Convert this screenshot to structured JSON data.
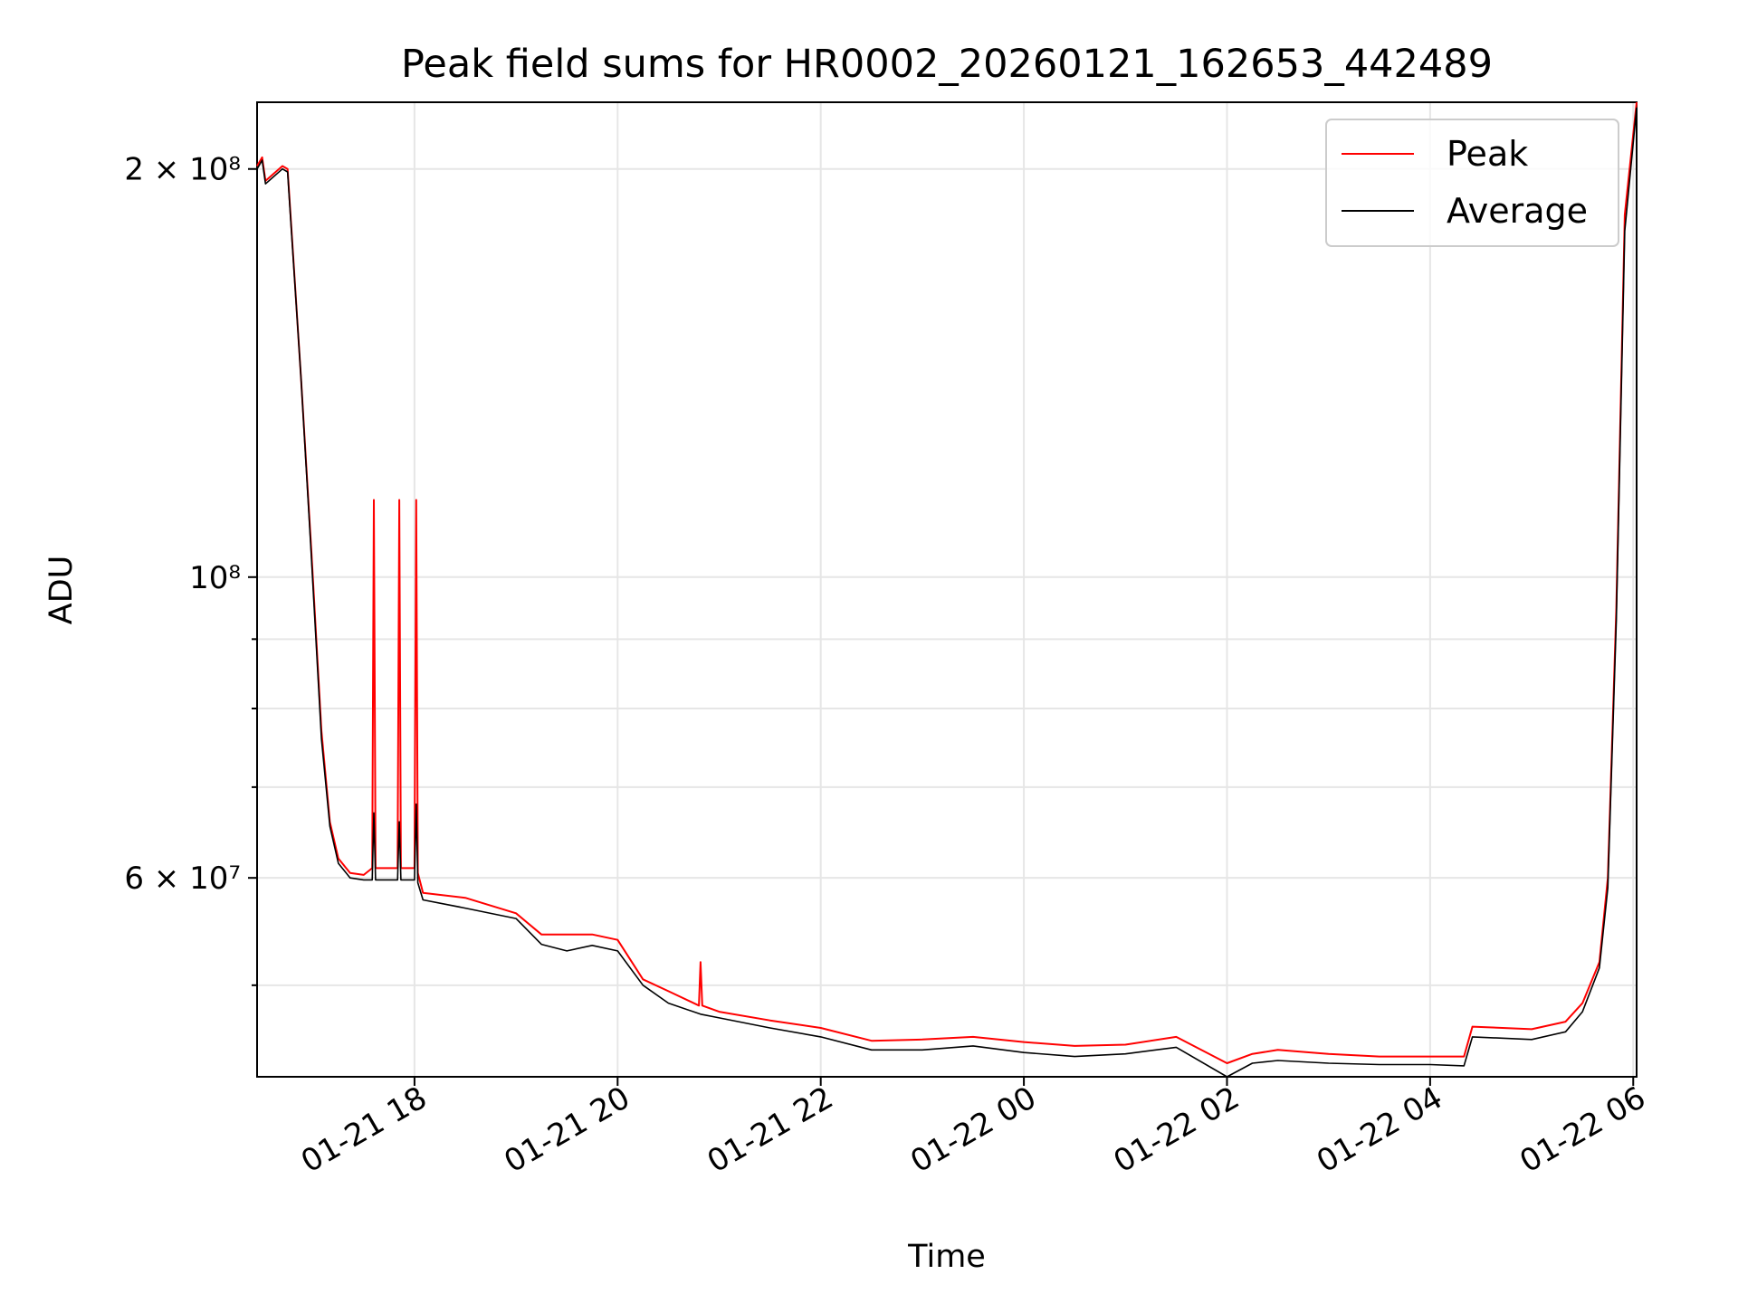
{
  "chart_data": {
    "type": "line",
    "title": "Peak field sums for HR0002_20260121_162653_442489",
    "xlabel": "Time",
    "ylabel": "ADU",
    "yscale": "log",
    "grid": true,
    "legend_position": "top-right",
    "xlim": [
      "2026-01-21 16:27",
      "2026-01-22 06:02"
    ],
    "ylim": [
      42800000,
      224000000
    ],
    "x_ticks": [
      "2026-01-21 18:00",
      "2026-01-21 20:00",
      "2026-01-21 22:00",
      "2026-01-22 00:00",
      "2026-01-22 02:00",
      "2026-01-22 04:00",
      "2026-01-22 06:00"
    ],
    "x_tick_labels": [
      "01-21 18",
      "01-21 20",
      "01-21 22",
      "01-22 00",
      "01-22 02",
      "01-22 04",
      "01-22 06"
    ],
    "y_ticks_major": [
      {
        "value": 60000000,
        "label": "6 × 10⁷"
      },
      {
        "value": 100000000,
        "label": "10⁸"
      },
      {
        "value": 200000000,
        "label": "2 × 10⁸"
      }
    ],
    "y_ticks_minor": [
      50000000,
      70000000,
      80000000,
      90000000
    ],
    "colors": {
      "peak": "#ff0000",
      "average": "#000000",
      "grid": "#e6e6e6"
    },
    "series": [
      {
        "name": "Peak",
        "x": [
          "2026-01-21 16:27",
          "2026-01-21 16:30",
          "2026-01-21 16:32",
          "2026-01-21 16:42",
          "2026-01-21 16:45",
          "2026-01-21 16:53",
          "2026-01-21 16:59",
          "2026-01-21 17:05",
          "2026-01-21 17:10",
          "2026-01-21 17:15",
          "2026-01-21 17:22",
          "2026-01-21 17:30",
          "2026-01-21 17:35",
          "2026-01-21 17:36",
          "2026-01-21 17:37",
          "2026-01-21 17:50",
          "2026-01-21 17:51",
          "2026-01-21 17:52",
          "2026-01-21 18:00",
          "2026-01-21 18:01",
          "2026-01-21 18:02",
          "2026-01-21 18:05",
          "2026-01-21 18:30",
          "2026-01-21 19:00",
          "2026-01-21 19:15",
          "2026-01-21 19:30",
          "2026-01-21 19:45",
          "2026-01-21 20:00",
          "2026-01-21 20:15",
          "2026-01-21 20:30",
          "2026-01-21 20:48",
          "2026-01-21 20:49",
          "2026-01-21 20:50",
          "2026-01-21 21:00",
          "2026-01-21 21:30",
          "2026-01-21 22:00",
          "2026-01-21 22:30",
          "2026-01-21 23:00",
          "2026-01-21 23:30",
          "2026-01-22 00:00",
          "2026-01-22 00:30",
          "2026-01-22 01:00",
          "2026-01-22 01:30",
          "2026-01-22 02:00",
          "2026-01-22 02:15",
          "2026-01-22 02:30",
          "2026-01-22 03:00",
          "2026-01-22 03:30",
          "2026-01-22 04:00",
          "2026-01-22 04:20",
          "2026-01-22 04:25",
          "2026-01-22 05:00",
          "2026-01-22 05:20",
          "2026-01-22 05:30",
          "2026-01-22 05:40",
          "2026-01-22 05:45",
          "2026-01-22 05:50",
          "2026-01-22 05:55",
          "2026-01-22 06:02"
        ],
        "y": [
          201000000,
          204000000,
          196000000,
          201000000,
          200000000,
          140000000,
          105000000,
          77000000,
          66000000,
          62000000,
          60500000,
          60300000,
          61000000,
          114000000,
          61000000,
          61000000,
          114000000,
          61000000,
          61000000,
          114000000,
          60500000,
          58500000,
          58000000,
          56500000,
          54500000,
          54500000,
          54500000,
          54000000,
          50500000,
          49500000,
          48300000,
          52000000,
          48300000,
          47800000,
          47100000,
          46500000,
          45500000,
          45600000,
          45800000,
          45400000,
          45100000,
          45200000,
          45800000,
          43800000,
          44500000,
          44800000,
          44500000,
          44300000,
          44300000,
          44300000,
          46600000,
          46400000,
          47000000,
          48500000,
          52000000,
          60000000,
          95000000,
          185000000,
          224000000
        ]
      },
      {
        "name": "Average",
        "x": [
          "2026-01-21 16:27",
          "2026-01-21 16:30",
          "2026-01-21 16:32",
          "2026-01-21 16:42",
          "2026-01-21 16:45",
          "2026-01-21 16:53",
          "2026-01-21 16:59",
          "2026-01-21 17:05",
          "2026-01-21 17:10",
          "2026-01-21 17:15",
          "2026-01-21 17:22",
          "2026-01-21 17:30",
          "2026-01-21 17:35",
          "2026-01-21 17:36",
          "2026-01-21 17:37",
          "2026-01-21 17:50",
          "2026-01-21 17:51",
          "2026-01-21 17:52",
          "2026-01-21 18:00",
          "2026-01-21 18:01",
          "2026-01-21 18:02",
          "2026-01-21 18:05",
          "2026-01-21 18:30",
          "2026-01-21 19:00",
          "2026-01-21 19:15",
          "2026-01-21 19:30",
          "2026-01-21 19:45",
          "2026-01-21 20:00",
          "2026-01-21 20:15",
          "2026-01-21 20:30",
          "2026-01-21 20:49",
          "2026-01-21 21:00",
          "2026-01-21 21:30",
          "2026-01-21 22:00",
          "2026-01-21 22:30",
          "2026-01-21 23:00",
          "2026-01-21 23:30",
          "2026-01-22 00:00",
          "2026-01-22 00:30",
          "2026-01-22 01:00",
          "2026-01-22 01:30",
          "2026-01-22 02:00",
          "2026-01-22 02:15",
          "2026-01-22 02:30",
          "2026-01-22 03:00",
          "2026-01-22 03:30",
          "2026-01-22 04:00",
          "2026-01-22 04:20",
          "2026-01-22 04:25",
          "2026-01-22 05:00",
          "2026-01-22 05:20",
          "2026-01-22 05:30",
          "2026-01-22 05:40",
          "2026-01-22 05:45",
          "2026-01-22 05:50",
          "2026-01-22 05:55",
          "2026-01-22 06:02"
        ],
        "y": [
          200000000,
          203000000,
          195000000,
          200000000,
          199000000,
          140000000,
          104000000,
          76000000,
          65500000,
          61500000,
          60000000,
          59800000,
          59800000,
          67000000,
          59800000,
          59800000,
          66000000,
          59800000,
          59800000,
          68000000,
          59500000,
          57800000,
          57000000,
          56000000,
          53600000,
          53000000,
          53500000,
          53000000,
          50000000,
          48500000,
          47600000,
          47300000,
          46500000,
          45800000,
          44800000,
          44800000,
          45100000,
          44600000,
          44300000,
          44500000,
          45000000,
          42800000,
          43800000,
          44000000,
          43800000,
          43700000,
          43700000,
          43600000,
          45800000,
          45600000,
          46200000,
          47800000,
          51500000,
          59000000,
          93000000,
          180000000,
          222000000
        ]
      }
    ]
  }
}
